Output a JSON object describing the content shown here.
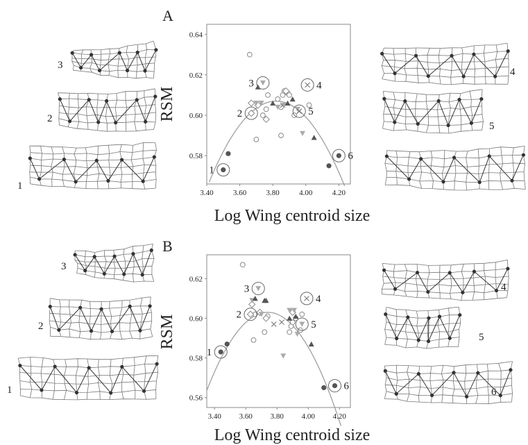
{
  "chart_data": [
    {
      "type": "scatter",
      "panel_label": "A",
      "xlabel": "Log Wing centroid size",
      "ylabel": "RSM",
      "xlim": [
        3.4,
        4.27
      ],
      "ylim": [
        0.566,
        0.645
      ],
      "xticks": [
        "3.40",
        "3.60",
        "3.80",
        "4.00",
        "4.20"
      ],
      "yticks": [
        "0.64",
        "0.62",
        "0.60",
        "0.58"
      ],
      "fit_curve": {
        "vertex_x": 3.82,
        "vertex_y": 0.607,
        "x_at_0566_left": 3.415,
        "x_at_0566_right": 4.235
      },
      "groups": [
        {
          "marker": "open-circle",
          "points": [
            [
              3.66,
              0.63
            ],
            [
              3.7,
              0.588
            ],
            [
              3.74,
              0.6
            ],
            [
              3.76,
              0.603
            ],
            [
              3.77,
              0.61
            ],
            [
              3.83,
              0.608
            ],
            [
              3.85,
              0.59
            ],
            [
              3.85,
              0.604
            ],
            [
              3.86,
              0.61
            ],
            [
              3.87,
              0.612
            ],
            [
              3.89,
              0.611
            ],
            [
              3.9,
              0.61
            ],
            [
              3.93,
              0.6
            ],
            [
              4.02,
              0.605
            ]
          ]
        },
        {
          "marker": "open-diamond",
          "points": [
            [
              3.67,
              0.606
            ],
            [
              3.71,
              0.605
            ],
            [
              3.76,
              0.598
            ],
            [
              3.88,
              0.612
            ]
          ]
        },
        {
          "marker": "x",
          "points": [
            [
              3.86,
              0.605
            ],
            [
              3.96,
              0.602
            ]
          ]
        },
        {
          "marker": "gray-triangle-down",
          "points": [
            [
              3.7,
              0.606
            ],
            [
              3.73,
              0.606
            ],
            [
              3.83,
              0.604
            ],
            [
              3.87,
              0.605
            ],
            [
              3.95,
              0.603
            ],
            [
              3.98,
              0.591
            ]
          ]
        },
        {
          "marker": "dark-triangle-up",
          "points": [
            [
              3.71,
              0.614
            ],
            [
              3.8,
              0.606
            ],
            [
              3.89,
              0.606
            ],
            [
              3.92,
              0.608
            ],
            [
              4.05,
              0.589
            ]
          ]
        },
        {
          "marker": "filled-circle",
          "points": [
            [
              3.53,
              0.581
            ],
            [
              4.14,
              0.575
            ]
          ]
        }
      ],
      "highlighted": [
        {
          "id": "1",
          "x": 3.5,
          "y": 0.573,
          "marker": "filled-circle"
        },
        {
          "id": "2",
          "x": 3.67,
          "y": 0.601,
          "marker": "open-diamond"
        },
        {
          "id": "3",
          "x": 3.74,
          "y": 0.616,
          "marker": "gray-triangle-down"
        },
        {
          "id": "4",
          "x": 4.01,
          "y": 0.615,
          "marker": "x"
        },
        {
          "id": "5",
          "x": 3.96,
          "y": 0.602,
          "marker": "x"
        },
        {
          "id": "6",
          "x": 4.2,
          "y": 0.58,
          "marker": "filled-circle"
        }
      ]
    },
    {
      "type": "scatter",
      "panel_label": "B",
      "xlabel": "Log Wing centroid size",
      "ylabel": "RSM",
      "xlim": [
        3.35,
        4.27
      ],
      "ylim": [
        0.555,
        0.632
      ],
      "xticks": [
        "3.40",
        "3.60",
        "3.80",
        "4.00",
        "4.20"
      ],
      "yticks": [
        "0.62",
        "0.60",
        "0.58",
        "0.56"
      ],
      "fit_curve": {
        "vertex_x": 3.74,
        "vertex_y": 0.603,
        "x_at_0555_left": 3.35,
        "x_at_0555_right": 4.21
      },
      "groups": [
        {
          "marker": "open-circle",
          "points": [
            [
              3.58,
              0.627
            ],
            [
              3.65,
              0.589
            ],
            [
              3.66,
              0.602
            ],
            [
              3.72,
              0.593
            ],
            [
              3.74,
              0.601
            ],
            [
              3.88,
              0.593
            ],
            [
              3.89,
              0.596
            ],
            [
              3.9,
              0.598
            ],
            [
              3.92,
              0.6
            ],
            [
              3.95,
              0.594
            ],
            [
              3.96,
              0.602
            ]
          ]
        },
        {
          "marker": "open-diamond",
          "points": [
            [
              3.64,
              0.607
            ],
            [
              3.69,
              0.603
            ],
            [
              3.73,
              0.6
            ],
            [
              3.9,
              0.603
            ]
          ]
        },
        {
          "marker": "x",
          "points": [
            [
              3.78,
              0.597
            ],
            [
              3.83,
              0.598
            ]
          ]
        },
        {
          "marker": "gray-triangle-down",
          "points": [
            [
              3.64,
              0.609
            ],
            [
              3.7,
              0.602
            ],
            [
              3.84,
              0.581
            ],
            [
              3.88,
              0.604
            ],
            [
              3.91,
              0.604
            ],
            [
              3.93,
              0.592
            ]
          ]
        },
        {
          "marker": "dark-triangle-up",
          "points": [
            [
              3.66,
              0.61
            ],
            [
              3.72,
              0.609
            ],
            [
              3.73,
              0.609
            ],
            [
              3.88,
              0.6
            ],
            [
              3.92,
              0.601
            ],
            [
              4.02,
              0.587
            ]
          ]
        },
        {
          "marker": "filled-circle",
          "points": [
            [
              3.48,
              0.587
            ],
            [
              4.1,
              0.565
            ]
          ]
        }
      ],
      "highlighted": [
        {
          "id": "1",
          "x": 3.44,
          "y": 0.583,
          "marker": "filled-circle"
        },
        {
          "id": "2",
          "x": 3.63,
          "y": 0.602,
          "marker": "open-diamond"
        },
        {
          "id": "3",
          "x": 3.68,
          "y": 0.615,
          "marker": "gray-triangle-down"
        },
        {
          "id": "4",
          "x": 3.99,
          "y": 0.61,
          "marker": "x"
        },
        {
          "id": "5",
          "x": 3.96,
          "y": 0.597,
          "marker": "gray-triangle-down"
        },
        {
          "id": "6",
          "x": 4.17,
          "y": 0.566,
          "marker": "filled-circle"
        }
      ]
    }
  ],
  "wing_labels": {
    "A": {
      "left": [
        "3",
        "2",
        "1"
      ],
      "right": [
        "4",
        "5",
        ""
      ]
    },
    "B": {
      "left": [
        "3",
        "2",
        "1"
      ],
      "right": [
        "4",
        "5",
        "6"
      ]
    }
  },
  "colors": {
    "axis": "#888888",
    "curve": "#999999",
    "marker_dark": "#555555",
    "marker_gray": "#aaaaaa",
    "grid_line": "#666666"
  }
}
